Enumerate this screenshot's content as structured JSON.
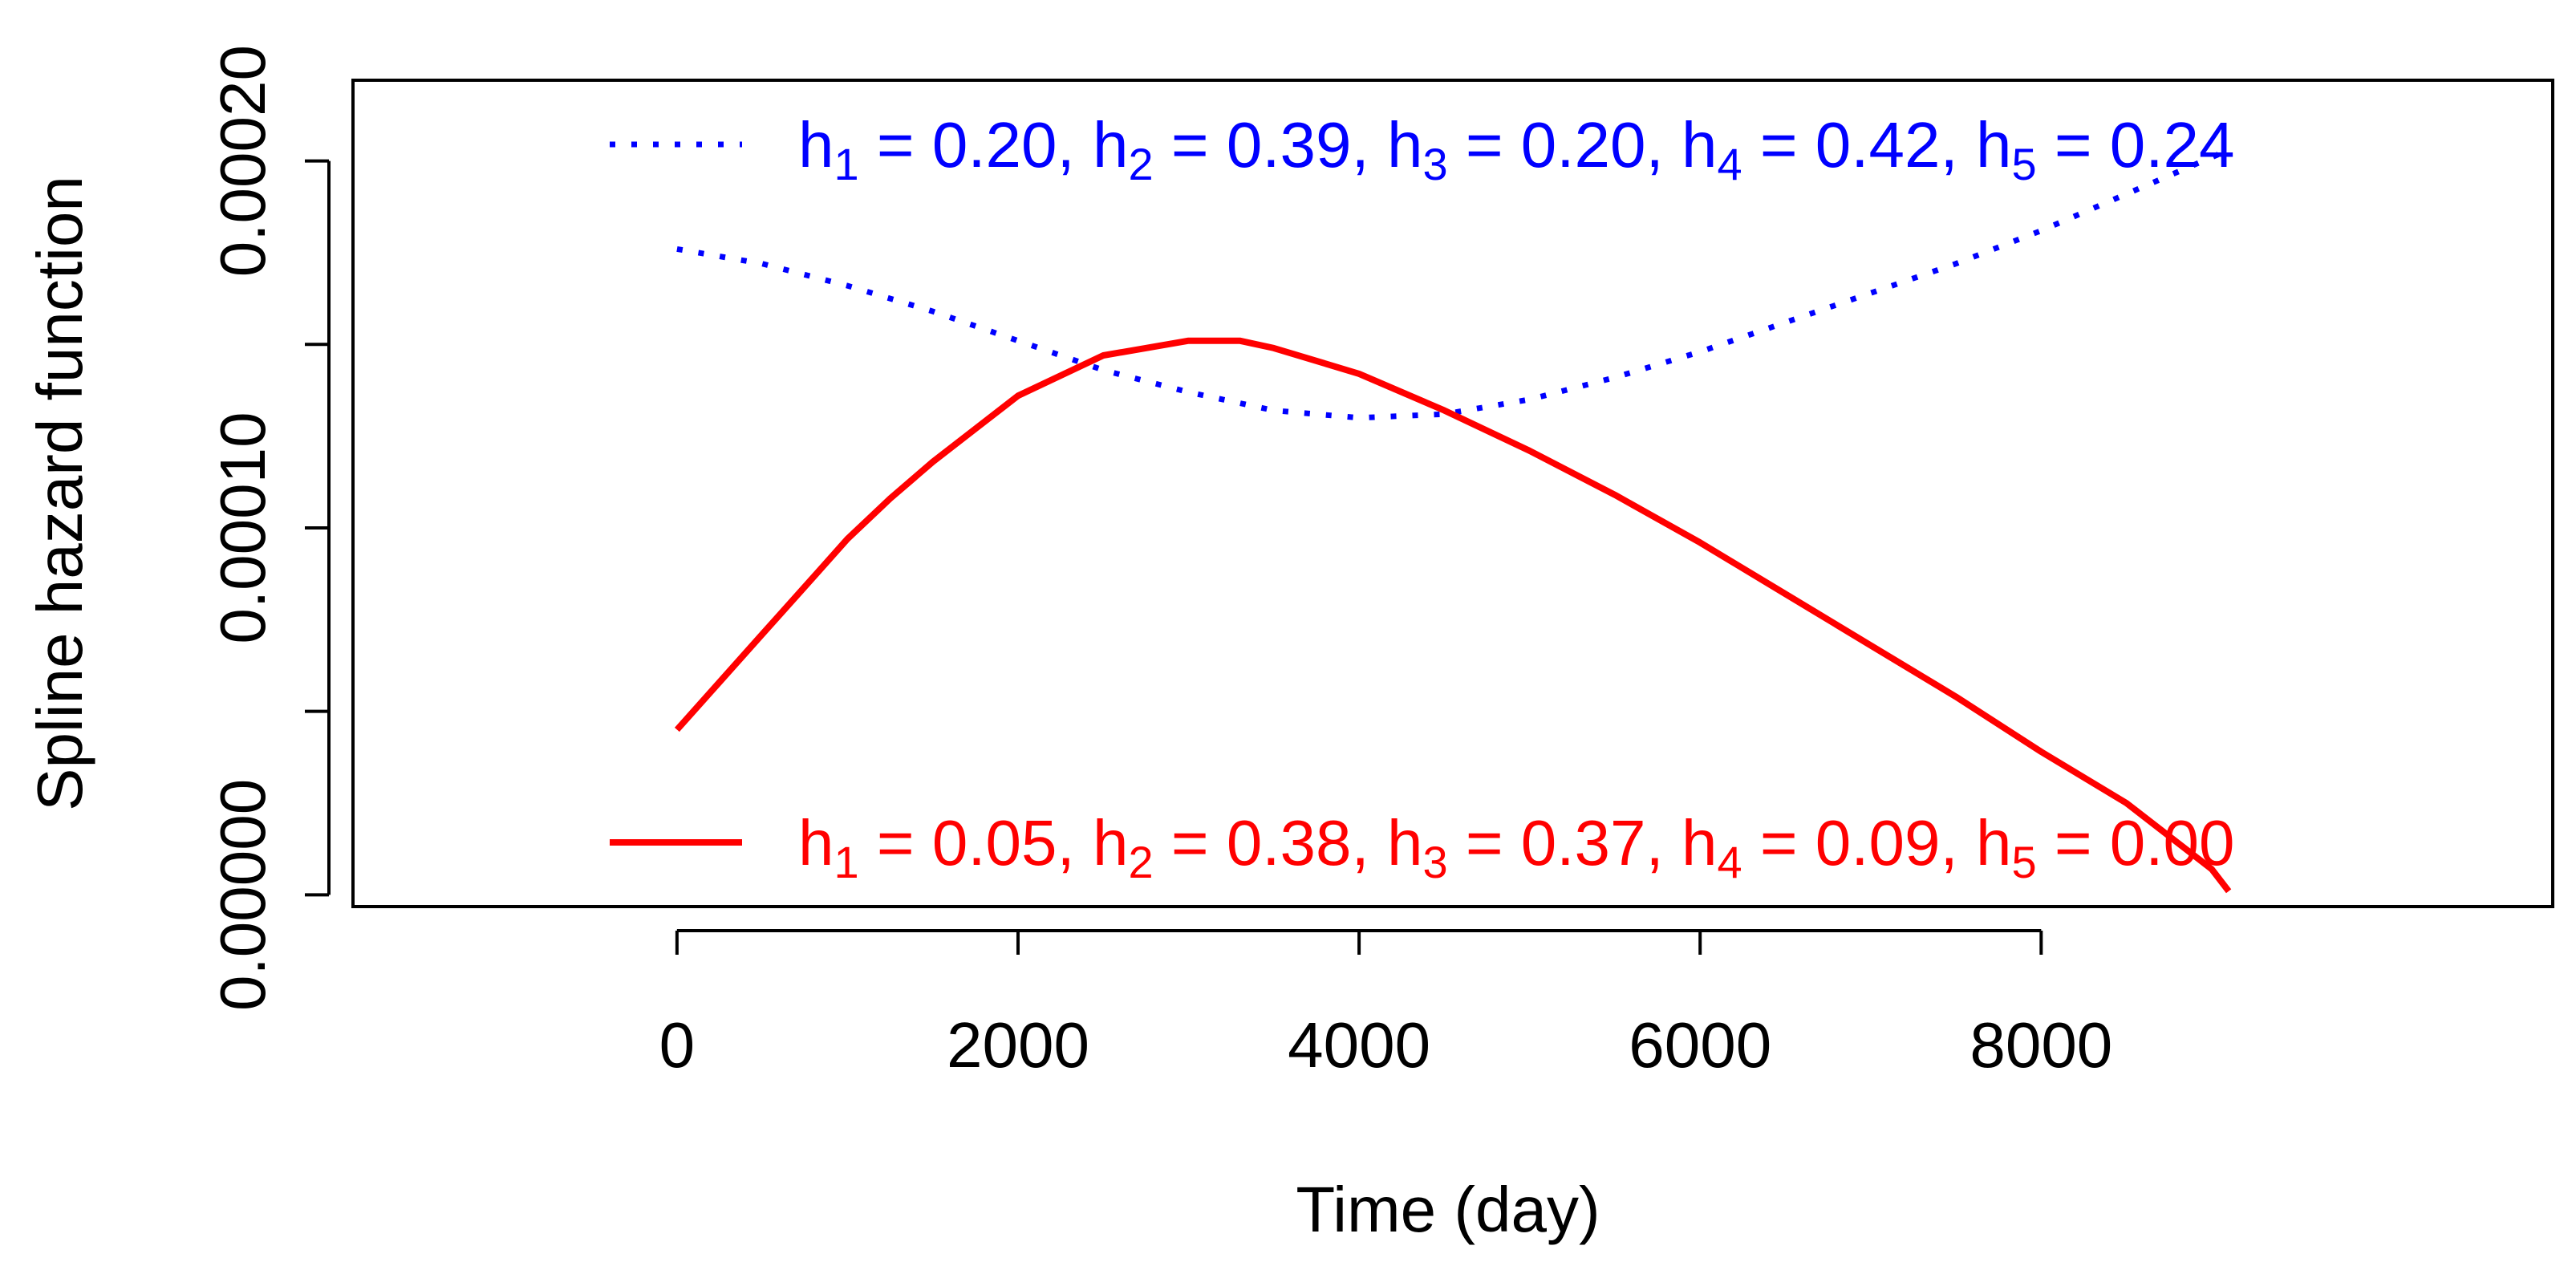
{
  "chart_data": {
    "type": "line",
    "title": "",
    "xlabel": "Time (day)",
    "ylabel": "Spline hazard function",
    "xlim": [
      -1900,
      11000
    ],
    "ylim": [
      -3.2e-06,
      0.000222
    ],
    "x_ticks": [
      0,
      2000,
      4000,
      6000,
      8000
    ],
    "x_tick_labels": [
      "0",
      "2000",
      "4000",
      "6000",
      "8000"
    ],
    "y_ticks": [
      0.0,
      5e-05,
      0.0001,
      0.00015,
      0.0002
    ],
    "y_tick_labels": [
      "0.00000",
      "",
      "0.00010",
      "",
      "0.00020"
    ],
    "grid": false,
    "series": [
      {
        "name": "blue",
        "color": "#0000ff",
        "line_style": "dotted",
        "legend_label": [
          {
            "text": "h",
            "sub": "1",
            "rest": " = 0.20, "
          },
          {
            "text": "h",
            "sub": "2",
            "rest": " = 0.39, "
          },
          {
            "text": "h",
            "sub": "3",
            "rest": " = 0.20, "
          },
          {
            "text": "h",
            "sub": "4",
            "rest": " = 0.42, "
          },
          {
            "text": "h",
            "sub": "5",
            "rest": " = 0.24"
          }
        ],
        "x": [
          0,
          500,
          1000,
          1500,
          2000,
          2500,
          3000,
          3500,
          4000,
          4500,
          5000,
          5500,
          6000,
          6500,
          7000,
          7500,
          8000,
          8500,
          9000,
          9100
        ],
        "y": [
          0.000176,
          0.000172,
          0.000166,
          0.000159,
          0.000151,
          0.000143,
          0.000137,
          0.000132,
          0.00013,
          0.000131,
          0.000135,
          0.000141,
          0.000148,
          0.000156,
          0.000164,
          0.000172,
          0.000181,
          0.000191,
          0.000201,
          0.000203
        ]
      },
      {
        "name": "red",
        "color": "#ff0000",
        "line_style": "solid",
        "legend_label": [
          {
            "text": "h",
            "sub": "1",
            "rest": " = 0.05, "
          },
          {
            "text": "h",
            "sub": "2",
            "rest": " = 0.38, "
          },
          {
            "text": "h",
            "sub": "3",
            "rest": " = 0.37, "
          },
          {
            "text": "h",
            "sub": "4",
            "rest": " = 0.09, "
          },
          {
            "text": "h",
            "sub": "5",
            "rest": " = 0.00"
          }
        ],
        "x": [
          0,
          250,
          500,
          750,
          1000,
          1250,
          1500,
          1750,
          2000,
          2500,
          3000,
          3300,
          3500,
          4000,
          4500,
          5000,
          5500,
          6000,
          6500,
          7000,
          7500,
          8000,
          8500,
          9000,
          9100
        ],
        "y": [
          4.5e-05,
          5.8e-05,
          7.1e-05,
          8.4e-05,
          9.7e-05,
          0.000108,
          0.000118,
          0.000127,
          0.000136,
          0.000147,
          0.000151,
          0.000151,
          0.000149,
          0.000142,
          0.000132,
          0.000121,
          0.000109,
          9.6e-05,
          8.2e-05,
          6.8e-05,
          5.4e-05,
          3.9e-05,
          2.5e-05,
          7e-06,
          1e-06
        ]
      }
    ],
    "legend": "inside"
  }
}
